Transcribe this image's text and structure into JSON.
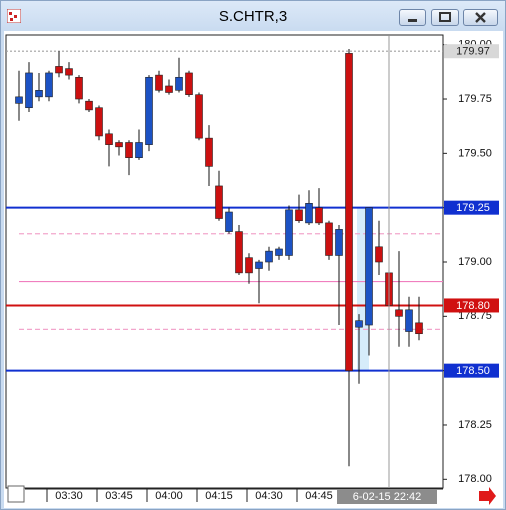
{
  "window_title": "S.CHTR,3",
  "chart_data": {
    "type": "candlestick",
    "categories": [
      null,
      null,
      null,
      null,
      null,
      "03:30",
      null,
      null,
      null,
      null,
      "03:45",
      null,
      null,
      null,
      null,
      "04:00",
      null,
      null,
      null,
      null,
      "04:15",
      null,
      null,
      null,
      null,
      "04:30",
      null,
      null,
      null,
      null,
      "04:45",
      null,
      null,
      null,
      null,
      null,
      null,
      null,
      null,
      null,
      null
    ],
    "open": [
      179.73,
      179.71,
      179.76,
      179.76,
      179.9,
      179.89,
      179.85,
      179.74,
      179.71,
      179.59,
      179.55,
      179.55,
      179.48,
      179.54,
      179.86,
      179.81,
      179.79,
      179.87,
      179.77,
      179.57,
      179.35,
      179.14,
      179.14,
      179.02,
      178.97,
      179.0,
      179.03,
      179.03,
      179.24,
      179.18,
      179.25,
      179.18,
      179.03,
      179.96,
      178.7,
      178.71,
      179.07,
      178.95,
      178.78,
      178.68,
      178.72
    ],
    "high": [
      179.88,
      179.92,
      179.87,
      179.88,
      179.97,
      179.92,
      179.86,
      179.75,
      179.72,
      179.61,
      179.56,
      179.56,
      179.61,
      179.86,
      179.88,
      179.84,
      179.94,
      179.88,
      179.78,
      179.63,
      179.42,
      179.25,
      179.17,
      179.04,
      179.01,
      179.07,
      179.07,
      179.26,
      179.31,
      179.33,
      179.34,
      179.19,
      179.17,
      179.98,
      178.76,
      179.25,
      179.19,
      178.97,
      179.05,
      178.84,
      178.84
    ],
    "low": [
      179.65,
      179.69,
      179.74,
      179.74,
      179.85,
      179.84,
      179.73,
      179.69,
      179.56,
      179.44,
      179.49,
      179.4,
      179.47,
      179.51,
      179.78,
      179.77,
      179.78,
      179.76,
      179.56,
      179.35,
      179.19,
      179.13,
      178.94,
      178.9,
      178.81,
      178.96,
      179.01,
      179.01,
      179.18,
      179.17,
      179.17,
      179.01,
      178.71,
      178.06,
      178.44,
      178.57,
      178.94,
      178.73,
      178.61,
      178.61,
      178.64
    ],
    "close": [
      179.76,
      179.87,
      179.79,
      179.87,
      179.87,
      179.86,
      179.75,
      179.7,
      179.58,
      179.54,
      179.53,
      179.48,
      179.55,
      179.85,
      179.79,
      179.78,
      179.85,
      179.77,
      179.57,
      179.44,
      179.2,
      179.23,
      178.95,
      178.95,
      179.0,
      179.05,
      179.06,
      179.24,
      179.19,
      179.27,
      179.18,
      179.03,
      179.15,
      178.5,
      178.73,
      179.25,
      179.0,
      178.8,
      178.75,
      178.78,
      178.67
    ],
    "up_color": "#1c52c4",
    "down_color": "#cc1010",
    "ylim": [
      177.96,
      180.04
    ],
    "yticks": [
      {
        "value": 178,
        "label": "178.00"
      },
      {
        "value": 178.25,
        "label": "178.25"
      },
      {
        "value": 178.5,
        "label": "178.50"
      },
      {
        "value": 178.75,
        "label": "178.75"
      },
      {
        "value": 179,
        "label": "179.00"
      },
      {
        "value": 179.25,
        "label": "179.25"
      },
      {
        "value": 179.5,
        "label": "179.50"
      },
      {
        "value": 179.75,
        "label": "179.75"
      },
      {
        "value": 180,
        "label": "180.00"
      }
    ],
    "levels": [
      {
        "value": 179.13,
        "color": "#f2a6cc",
        "style": "dashed"
      },
      {
        "value": 178.91,
        "color": "#f07fbf",
        "style": "solid"
      },
      {
        "value": 178.69,
        "color": "#f2a6cc",
        "style": "dashed"
      },
      {
        "value": 179.97,
        "color": "#a0a0a0",
        "style": "dotted"
      },
      {
        "value": 179.25,
        "color": "#1030d0",
        "style": "solid"
      },
      {
        "value": 178.8,
        "label": "178.80",
        "color": "#d01010",
        "style": "solid"
      },
      {
        "value": 178.5,
        "label": "178.50",
        "color": "#1030d0",
        "style": "solid"
      }
    ],
    "crosshair_label": "6-02-15 22:42"
  }
}
